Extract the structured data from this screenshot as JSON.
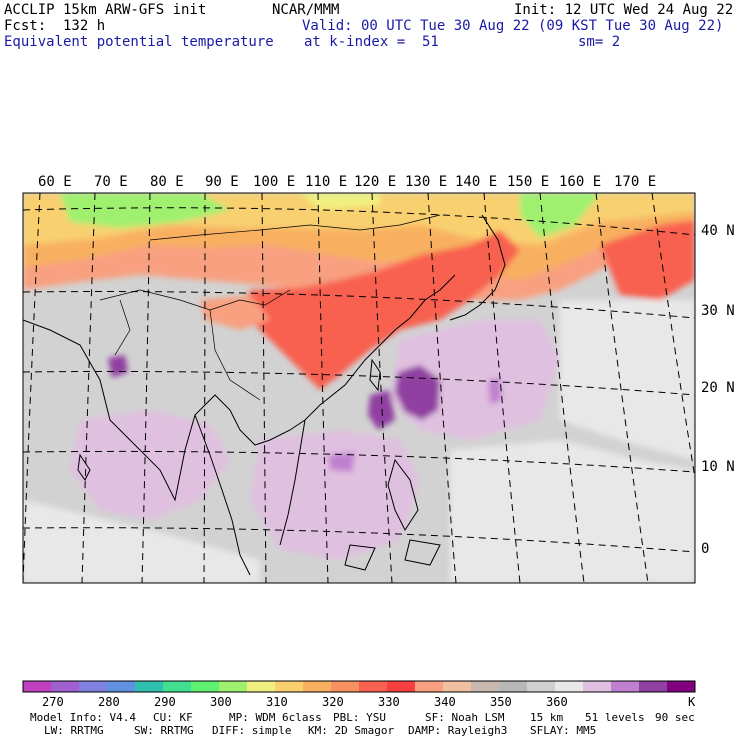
{
  "header": {
    "model_line": "ACCLIP 15km ARW-GFS init",
    "center": "NCAR/MMM",
    "init": "Init: 12 UTC Wed 24 Aug 22",
    "fcst": "Fcst:  132 h",
    "valid": "Valid: 00 UTC Tue 30 Aug 22 (09 KST Tue 30 Aug 22)",
    "field": "Equivalent potential temperature",
    "level": "at k-index =  51",
    "smooth": "sm= 2"
  },
  "map": {
    "lon_labels": [
      "60 E",
      "70 E",
      "80 E",
      "90 E",
      "100 E",
      "110 E",
      "120 E",
      "130 E",
      "140 E",
      "150 E",
      "160 E",
      "170 E"
    ],
    "lat_labels": [
      "40 N",
      "30 N",
      "20 N",
      "10 N",
      "0"
    ]
  },
  "colorbar": {
    "unit": "K",
    "tick_labels": [
      "270",
      "280",
      "290",
      "300",
      "310",
      "320",
      "330",
      "340",
      "350",
      "360"
    ],
    "colors": [
      "#c040c0",
      "#a060d0",
      "#8080e0",
      "#6090e0",
      "#30c0b0",
      "#40e090",
      "#60f070",
      "#a0f070",
      "#f0f080",
      "#f8d070",
      "#f8b060",
      "#f89060",
      "#f86050",
      "#f84040",
      "#f8a080",
      "#f0c0a0",
      "#c8b8b0",
      "#b8b8b8",
      "#d0d0d0",
      "#e8e8e8",
      "#e0c0e0",
      "#c080d0",
      "#9040a0",
      "#800080"
    ]
  },
  "footer": {
    "line1": [
      "Model Info: V4.4",
      "CU: KF",
      "MP: WDM 6class",
      "PBL: YSU",
      "SF: Noah LSM",
      "15 km",
      "51 levels",
      "90 sec"
    ],
    "line2": [
      "LW: RRTMG",
      "SW: RRTMG",
      "DIFF: simple",
      "KM: 2D Smagor",
      "DAMP: Rayleigh3",
      "SFLAY: MM5"
    ]
  }
}
